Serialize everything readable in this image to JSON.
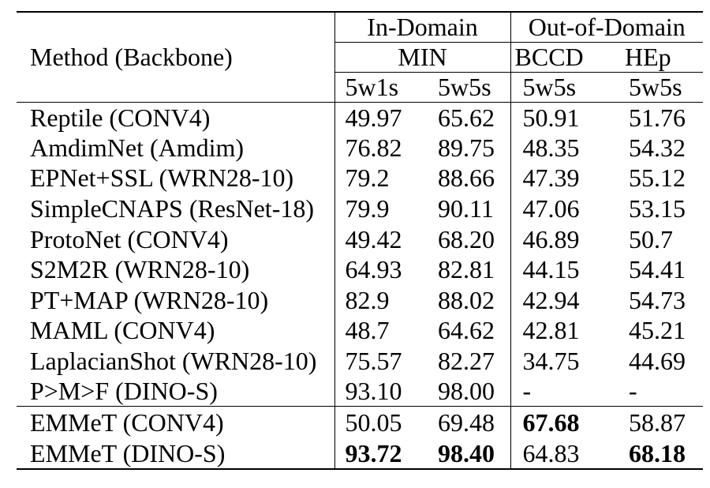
{
  "page": {
    "background_color": "#ffffff",
    "text_color": "#000000"
  },
  "table": {
    "header": {
      "method_label": "Method (Backbone)",
      "groups": [
        {
          "label": "In-Domain"
        },
        {
          "label": "Out-of-Domain"
        }
      ],
      "datasets": [
        "MIN",
        "BCCD",
        "HEp"
      ],
      "shots": [
        "5w1s",
        "5w5s",
        "5w5s",
        "5w5s"
      ]
    },
    "rows": [
      {
        "method": "Reptile (CONV4)",
        "values": [
          "49.97",
          "65.62",
          "50.91",
          "51.76"
        ],
        "bold": [
          false,
          false,
          false,
          false
        ]
      },
      {
        "method": "AmdimNet (Amdim)",
        "values": [
          "76.82",
          "89.75",
          "48.35",
          "54.32"
        ],
        "bold": [
          false,
          false,
          false,
          false
        ]
      },
      {
        "method": "EPNet+SSL (WRN28-10)",
        "values": [
          "79.2",
          "88.66",
          "47.39",
          "55.12"
        ],
        "bold": [
          false,
          false,
          false,
          false
        ]
      },
      {
        "method": "SimpleCNAPS (ResNet-18)",
        "values": [
          "79.9",
          "90.11",
          "47.06",
          "53.15"
        ],
        "bold": [
          false,
          false,
          false,
          false
        ]
      },
      {
        "method": "ProtoNet (CONV4)",
        "values": [
          "49.42",
          "68.20",
          "46.89",
          "50.7"
        ],
        "bold": [
          false,
          false,
          false,
          false
        ]
      },
      {
        "method": "S2M2R (WRN28-10)",
        "values": [
          "64.93",
          "82.81",
          "44.15",
          "54.41"
        ],
        "bold": [
          false,
          false,
          false,
          false
        ]
      },
      {
        "method": "PT+MAP (WRN28-10)",
        "values": [
          "82.9",
          "88.02",
          "42.94",
          "54.73"
        ],
        "bold": [
          false,
          false,
          false,
          false
        ]
      },
      {
        "method": "MAML (CONV4)",
        "values": [
          "48.7",
          "64.62",
          "42.81",
          "45.21"
        ],
        "bold": [
          false,
          false,
          false,
          false
        ]
      },
      {
        "method": "LaplacianShot (WRN28-10)",
        "values": [
          "75.57",
          "82.27",
          "34.75",
          "44.69"
        ],
        "bold": [
          false,
          false,
          false,
          false
        ]
      },
      {
        "method": "P>M>F (DINO-S)",
        "values": [
          "93.10",
          "98.00",
          "-",
          "-"
        ],
        "bold": [
          false,
          false,
          false,
          false
        ]
      }
    ],
    "highlight_rows": [
      {
        "method": "EMMeT (CONV4)",
        "values": [
          "50.05",
          "69.48",
          "67.68",
          "58.87"
        ],
        "bold": [
          false,
          false,
          true,
          false
        ]
      },
      {
        "method": "EMMeT (DINO-S)",
        "values": [
          "93.72",
          "98.40",
          "64.83",
          "68.18"
        ],
        "bold": [
          true,
          true,
          false,
          true
        ]
      }
    ]
  }
}
